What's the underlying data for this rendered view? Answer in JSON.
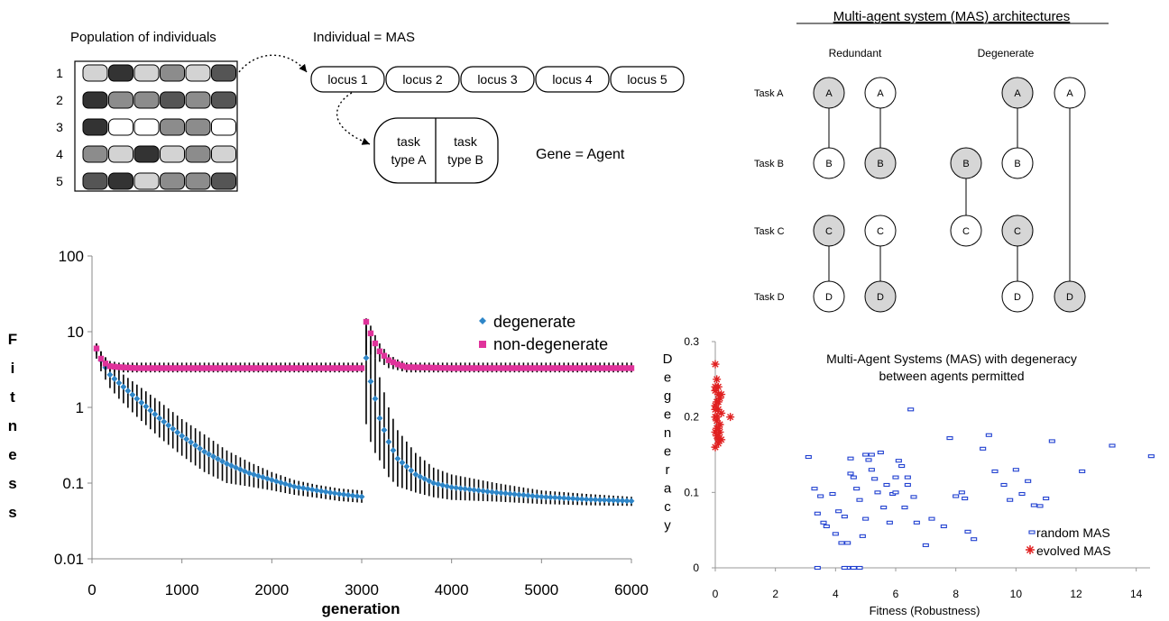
{
  "population": {
    "title": "Population of individuals",
    "row_labels": [
      "1",
      "2",
      "3",
      "4",
      "5"
    ],
    "row_shades": [
      [
        "#d3d3d3",
        "#333333",
        "#d3d3d3",
        "#8c8c8c",
        "#d3d3d3",
        "#555555"
      ],
      [
        "#333333",
        "#8c8c8c",
        "#8c8c8c",
        "#555555",
        "#8c8c8c",
        "#555555"
      ],
      [
        "#333333",
        "#ffffff",
        "#ffffff",
        "#8c8c8c",
        "#8c8c8c",
        "#ffffff"
      ],
      [
        "#8c8c8c",
        "#d3d3d3",
        "#333333",
        "#d3d3d3",
        "#8c8c8c",
        "#d3d3d3"
      ],
      [
        "#555555",
        "#333333",
        "#d3d3d3",
        "#8c8c8c",
        "#8c8c8c",
        "#555555"
      ]
    ]
  },
  "individual": {
    "title": "Individual = MAS",
    "loci": [
      "locus 1",
      "locus 2",
      "locus 3",
      "locus 4",
      "locus 5"
    ]
  },
  "gene": {
    "left_line1": "task",
    "left_line2": "type A",
    "right_line1": "task",
    "right_line2": "type B",
    "caption": "Gene = Agent"
  },
  "architectures": {
    "title": "Multi-agent system (MAS) architectures",
    "redundant_label": "Redundant",
    "degenerate_label": "Degenerate",
    "task_labels": [
      "Task A",
      "Task B",
      "Task C",
      "Task D"
    ],
    "nodes": [
      {
        "col": 0,
        "row": 0,
        "letter": "A",
        "filled": true
      },
      {
        "col": 0,
        "row": 1,
        "letter": "B",
        "filled": false
      },
      {
        "col": 0,
        "row": 2,
        "letter": "C",
        "filled": true
      },
      {
        "col": 0,
        "row": 3,
        "letter": "D",
        "filled": false
      },
      {
        "col": 1,
        "row": 0,
        "letter": "A",
        "filled": false
      },
      {
        "col": 1,
        "row": 1,
        "letter": "B",
        "filled": true
      },
      {
        "col": 1,
        "row": 2,
        "letter": "C",
        "filled": false
      },
      {
        "col": 1,
        "row": 3,
        "letter": "D",
        "filled": true
      },
      {
        "col": 2,
        "row": 1,
        "letter": "B",
        "filled": true
      },
      {
        "col": 2,
        "row": 2,
        "letter": "C",
        "filled": false
      },
      {
        "col": 3,
        "row": 0,
        "letter": "A",
        "filled": true
      },
      {
        "col": 3,
        "row": 1,
        "letter": "B",
        "filled": false
      },
      {
        "col": 3,
        "row": 2,
        "letter": "C",
        "filled": true
      },
      {
        "col": 3,
        "row": 3,
        "letter": "D",
        "filled": false
      },
      {
        "col": 4,
        "row": 0,
        "letter": "A",
        "filled": false
      },
      {
        "col": 4,
        "row": 3,
        "letter": "D",
        "filled": true
      }
    ],
    "links": [
      {
        "col": 0,
        "from": 0,
        "to": 1
      },
      {
        "col": 0,
        "from": 2,
        "to": 3
      },
      {
        "col": 1,
        "from": 0,
        "to": 1
      },
      {
        "col": 1,
        "from": 2,
        "to": 3
      },
      {
        "col": 2,
        "from": 1,
        "to": 2
      },
      {
        "col": 3,
        "from": 0,
        "to": 1
      },
      {
        "col": 3,
        "from": 2,
        "to": 3
      },
      {
        "col": 4,
        "from": 0,
        "to": 3
      }
    ]
  },
  "chart_data": [
    {
      "type": "line",
      "xlabel": "generation",
      "ylabel": "Fitness",
      "xlim": [
        0,
        6000
      ],
      "ylim": [
        0.01,
        100
      ],
      "yscale": "log",
      "x_ticks": [
        0,
        1000,
        2000,
        3000,
        4000,
        5000,
        6000
      ],
      "y_ticks": [
        0.01,
        0.1,
        1,
        10,
        100
      ],
      "y_tick_labels": [
        "0.01",
        "0.1",
        "1",
        "10",
        "100"
      ],
      "legend_position": "top-right",
      "series": [
        {
          "name": "degenerate",
          "color": "#2e86c8",
          "x": [
            50,
            100,
            200,
            300,
            500,
            750,
            1000,
            1250,
            1500,
            1750,
            2000,
            2250,
            2500,
            2750,
            3000,
            3050,
            3100,
            3150,
            3200,
            3300,
            3400,
            3600,
            3800,
            4000,
            4500,
            5000,
            5500,
            6000
          ],
          "y": [
            5.8,
            4.2,
            2.7,
            2.1,
            1.3,
            0.72,
            0.42,
            0.26,
            0.18,
            0.135,
            0.11,
            0.09,
            0.08,
            0.072,
            0.066,
            4.5,
            2.2,
            1.3,
            0.72,
            0.35,
            0.21,
            0.13,
            0.1,
            0.088,
            0.075,
            0.066,
            0.061,
            0.058
          ],
          "err_low": [
            4.4,
            3.0,
            1.8,
            1.3,
            0.75,
            0.4,
            0.23,
            0.14,
            0.1,
            0.09,
            0.08,
            0.07,
            0.064,
            0.058,
            0.055,
            0.6,
            0.35,
            0.25,
            0.2,
            0.12,
            0.09,
            0.075,
            0.065,
            0.06,
            0.057,
            0.053,
            0.051,
            0.05
          ],
          "err_high": [
            7.0,
            5.5,
            3.8,
            3.0,
            2.0,
            1.2,
            0.7,
            0.44,
            0.27,
            0.19,
            0.14,
            0.11,
            0.095,
            0.085,
            0.08,
            12,
            7.5,
            4.5,
            2.5,
            1.0,
            0.5,
            0.25,
            0.16,
            0.13,
            0.1,
            0.08,
            0.072,
            0.066
          ]
        },
        {
          "name": "non-degenerate",
          "color": "#e0339b",
          "x": [
            50,
            100,
            150,
            200,
            300,
            500,
            1000,
            1500,
            2000,
            2500,
            3000,
            3050,
            3100,
            3150,
            3200,
            3300,
            3400,
            3500,
            4000,
            5000,
            6000
          ],
          "y": [
            6.0,
            4.4,
            3.8,
            3.5,
            3.4,
            3.3,
            3.3,
            3.3,
            3.3,
            3.3,
            3.3,
            13.5,
            9.5,
            7.0,
            5.5,
            4.2,
            3.7,
            3.4,
            3.3,
            3.3,
            3.3
          ],
          "err_low": [
            5.0,
            3.5,
            3.1,
            3.0,
            2.9,
            2.9,
            2.9,
            2.9,
            2.9,
            2.9,
            2.9,
            5,
            5,
            4.5,
            4,
            3.3,
            3.1,
            2.9,
            2.9,
            2.9,
            2.9
          ],
          "err_high": [
            7.0,
            5.5,
            4.6,
            4.1,
            3.9,
            3.9,
            3.9,
            3.9,
            3.9,
            3.9,
            3.9,
            15,
            12,
            9,
            7,
            5,
            4.3,
            3.9,
            3.9,
            3.9,
            3.9
          ]
        }
      ]
    },
    {
      "type": "scatter",
      "title": "Multi-Agent Systems (MAS) with degeneracy between agents permitted",
      "title_line1": "Multi-Agent Systems (MAS) with degeneracy",
      "title_line2": "between agents permitted",
      "xlabel": "Fitness (Robustness)",
      "ylabel": "Degeneracy",
      "xlim": [
        0,
        15
      ],
      "ylim": [
        0,
        0.3
      ],
      "x_ticks": [
        0,
        2,
        4,
        6,
        8,
        10,
        12,
        14
      ],
      "y_ticks": [
        0,
        0.1,
        0.2,
        0.3
      ],
      "legend_position": "bottom-right",
      "series": [
        {
          "name": "random MAS",
          "color": "#1f3fd0",
          "marker": "rect",
          "x": [
            3.1,
            3.3,
            3.4,
            3.5,
            3.6,
            3.7,
            3.9,
            4.0,
            4.1,
            4.2,
            4.3,
            4.4,
            4.5,
            4.5,
            4.6,
            4.7,
            4.8,
            4.9,
            5.0,
            5.0,
            5.1,
            5.2,
            5.3,
            5.4,
            5.5,
            5.6,
            5.7,
            5.8,
            5.9,
            6.0,
            6.1,
            6.2,
            6.3,
            6.4,
            6.5,
            6.6,
            6.7,
            7.0,
            7.2,
            7.6,
            7.8,
            8.0,
            8.2,
            8.3,
            8.4,
            8.6,
            8.9,
            9.1,
            9.3,
            9.6,
            9.8,
            10.0,
            10.2,
            10.4,
            10.6,
            10.8,
            11.0,
            11.2,
            12.2,
            13.2,
            14.5,
            4.4,
            4.6,
            4.8,
            3.4,
            4.3,
            5.2,
            6.0,
            6.4
          ],
          "y": [
            0.147,
            0.105,
            0.072,
            0.095,
            0.06,
            0.055,
            0.098,
            0.045,
            0.075,
            0.033,
            0.068,
            0.033,
            0.125,
            0.145,
            0.12,
            0.105,
            0.09,
            0.042,
            0.15,
            0.065,
            0.143,
            0.13,
            0.118,
            0.1,
            0.153,
            0.08,
            0.11,
            0.06,
            0.098,
            0.12,
            0.142,
            0.135,
            0.08,
            0.11,
            0.21,
            0.094,
            0.06,
            0.03,
            0.065,
            0.055,
            0.172,
            0.095,
            0.1,
            0.092,
            0.048,
            0.038,
            0.158,
            0.176,
            0.128,
            0.11,
            0.09,
            0.13,
            0.098,
            0.115,
            0.083,
            0.082,
            0.092,
            0.168,
            0.128,
            0.162,
            0.148,
            0.0,
            0.0,
            0.0,
            0.0,
            0.0,
            0.15,
            0.1,
            0.12
          ]
        },
        {
          "name": "evolved MAS",
          "color": "#e02020",
          "marker": "asterisk",
          "x": [
            0.0,
            0.05,
            0.1,
            0.0,
            0.1,
            0.15,
            0.05,
            0.0,
            0.1,
            0.2,
            0.0,
            0.05,
            0.15,
            0.1,
            0.0,
            0.05,
            0.2,
            0.1,
            0.0,
            0.15,
            0.05,
            0.1,
            0.0,
            0.5,
            0.2,
            0.1,
            0.05,
            0.0,
            0.15,
            0.1
          ],
          "y": [
            0.27,
            0.25,
            0.24,
            0.235,
            0.23,
            0.225,
            0.22,
            0.215,
            0.21,
            0.205,
            0.2,
            0.195,
            0.19,
            0.185,
            0.18,
            0.175,
            0.17,
            0.165,
            0.16,
            0.18,
            0.2,
            0.22,
            0.24,
            0.2,
            0.23,
            0.175,
            0.185,
            0.21,
            0.19,
            0.17
          ]
        }
      ]
    }
  ]
}
